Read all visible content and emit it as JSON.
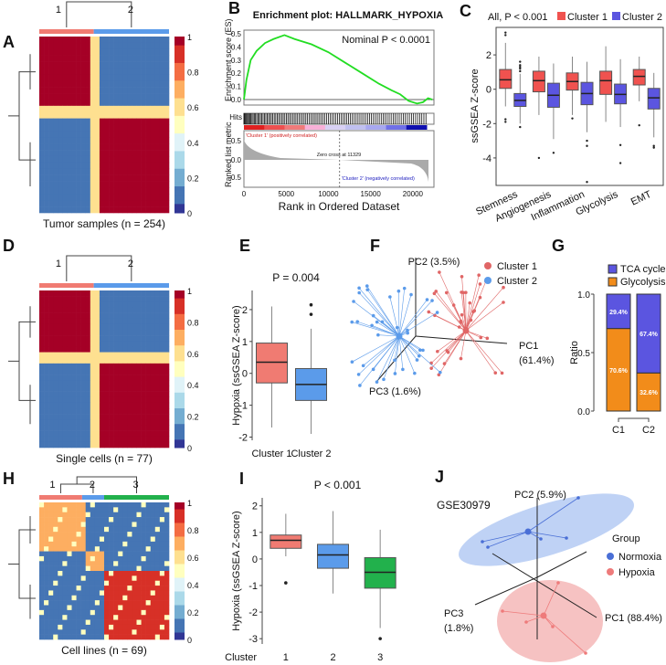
{
  "panel_labels": [
    "A",
    "B",
    "C",
    "D",
    "E",
    "F",
    "G",
    "H",
    "I",
    "J"
  ],
  "chart_data": [
    {
      "id": "A",
      "type": "heatmap",
      "caption": "Tumor samples (n = 254)",
      "dendro_labels": [
        "1",
        "2"
      ],
      "colorbar_ticks": [
        "1",
        "0.8",
        "0.6",
        "0.4",
        "0.2",
        "0"
      ],
      "groups": 2
    },
    {
      "id": "B",
      "type": "line",
      "title": "Enrichment plot: HALLMARK_HYPOXIA",
      "annotation": "Nominal P < 0.0001",
      "ylabel": "Enrichment score (ES)",
      "ylabel2": "Ranked list metric",
      "hits_label": "Hits",
      "xlabel": "Rank in Ordered Dataset",
      "yticks": [
        "0.5",
        "0.4",
        "0.3",
        "0.2",
        "0.1",
        "0.0"
      ],
      "yticks2": [
        "0.5",
        "0.0",
        "-0.5"
      ],
      "xticks": [
        "0",
        "5000",
        "10000",
        "15000",
        "20000"
      ],
      "xlim": [
        0,
        22500
      ],
      "ylim": [
        -0.05,
        0.52
      ],
      "x": [
        0,
        300,
        800,
        1500,
        2500,
        3500,
        4800,
        6000,
        8000,
        10000,
        12000,
        14000,
        16000,
        17500,
        18500,
        19500,
        20500,
        21200,
        21800,
        22300
      ],
      "y": [
        0,
        0.15,
        0.3,
        0.37,
        0.43,
        0.46,
        0.49,
        0.46,
        0.42,
        0.36,
        0.28,
        0.2,
        0.12,
        0.07,
        0.04,
        -0.01,
        -0.03,
        -0.02,
        0.01,
        0
      ],
      "zero_cross": "Zero cross at 11329",
      "zero_cross_x": 11329,
      "pos_label": "'Cluster 1' (positively correlated)",
      "neg_label": "'Cluster 2' (negatively correlated)"
    },
    {
      "id": "C",
      "type": "box",
      "header": "All, P < 0.001",
      "ylabel": "ssGSEA Z-score",
      "yticks": [
        "2",
        "0",
        "-2",
        "-4"
      ],
      "ylim": [
        -5.6,
        3.6
      ],
      "legend": [
        {
          "name": "Cluster 1",
          "color": "#f0524f"
        },
        {
          "name": "Cluster 2",
          "color": "#5b55e0"
        }
      ],
      "categories": [
        "Stemness",
        "Angiogenesis",
        "Inflammation",
        "Glycolysis",
        "EMT"
      ],
      "series": [
        {
          "name": "Cluster 1",
          "boxes": [
            [
              -1,
              0.05,
              0.55,
              1.15,
              2.7
            ],
            [
              -1.5,
              -0.15,
              0.5,
              1.05,
              1.9
            ],
            [
              -1.5,
              -0.05,
              0.45,
              0.95,
              1.9
            ],
            [
              -1.9,
              -0.3,
              0.5,
              1.05,
              2.5
            ],
            [
              -0.7,
              0.25,
              0.75,
              1.15,
              1.9
            ]
          ],
          "outliers": [
            [
              3.3,
              3.15,
              -1.75,
              -1.9
            ],
            [
              -4
            ],
            [
              -1.7
            ],
            [],
            [
              -2.1
            ]
          ]
        },
        {
          "name": "Cluster 2",
          "boxes": [
            [
              -2,
              -1,
              -0.65,
              -0.25,
              0.9
            ],
            [
              -2.9,
              -1.05,
              -0.35,
              0.35,
              1.5
            ],
            [
              -2.5,
              -0.9,
              -0.25,
              0.4,
              1.6
            ],
            [
              -2.2,
              -0.85,
              -0.3,
              0.3,
              1.75
            ],
            [
              -2.8,
              -1.15,
              -0.5,
              0.05,
              0.95
            ]
          ],
          "outliers": [
            [
              1.6,
              1.4,
              1.3,
              1.2,
              1.05,
              -2.2
            ],
            [
              -3.7
            ],
            [
              -3,
              -3.3,
              -5.4
            ],
            [
              -3.25,
              -4.3
            ],
            [
              -3.3,
              -3.4
            ]
          ]
        }
      ]
    },
    {
      "id": "D",
      "type": "heatmap",
      "caption": "Single cells (n = 77)",
      "dendro_labels": [
        "1",
        "2"
      ],
      "colorbar_ticks": [
        "1",
        "0.8",
        "0.6",
        "0.4",
        "0.2",
        "0"
      ],
      "groups": 2
    },
    {
      "id": "E",
      "type": "box",
      "header": "P = 0.004",
      "ylabel": "Hypoxia (ssGSEA Z-score)",
      "yticks": [
        "2",
        "1",
        "0",
        "-1",
        "-2"
      ],
      "ylim": [
        -2.1,
        2.6
      ],
      "categories": [
        "Cluster 1",
        "Cluster 2"
      ],
      "colors": [
        "#f07b72",
        "#5b9bea"
      ],
      "boxes": [
        [
          -1.7,
          -0.3,
          0.35,
          0.95,
          2.1
        ],
        [
          -1.9,
          -0.85,
          -0.35,
          0.15,
          1.4
        ]
      ],
      "outliers": [
        [],
        [
          2.15,
          1.85
        ]
      ]
    },
    {
      "id": "F",
      "type": "scatter3d",
      "axes": [
        "PC1",
        "PC2",
        "PC3"
      ],
      "axis_pct": [
        "(61.4%)",
        "(3.5%)",
        "(1.6%)"
      ],
      "legend": [
        {
          "name": "Cluster 1",
          "color": "#e06666"
        },
        {
          "name": "Cluster 2",
          "color": "#5b9bea"
        }
      ]
    },
    {
      "id": "G",
      "type": "bar",
      "stacked": true,
      "ylabel": "Ratio",
      "yticks": [
        "1.0",
        "0.5",
        "0.0"
      ],
      "categories": [
        "C1",
        "C2"
      ],
      "series": [
        {
          "name": "TCA cycle",
          "color": "#5b55e0",
          "values": [
            0.294,
            0.674
          ],
          "labels": [
            "29.4%",
            "67.4%"
          ]
        },
        {
          "name": "Glycolysis",
          "color": "#f28c1a",
          "values": [
            0.706,
            0.326
          ],
          "labels": [
            "70.6%",
            "32.6%"
          ]
        }
      ]
    },
    {
      "id": "H",
      "type": "heatmap",
      "caption": "Cell lines (n = 69)",
      "dendro_labels": [
        "1",
        "2",
        "3"
      ],
      "colorbar_ticks": [
        "1",
        "0.8",
        "0.6",
        "0.4",
        "0.2",
        "0"
      ],
      "groups": 3
    },
    {
      "id": "I",
      "type": "box",
      "header": "P < 0.001",
      "ylabel": "Hypoxia (ssGSEA Z-score)",
      "yticks": [
        "2",
        "1",
        "0",
        "-1",
        "-2",
        "-3"
      ],
      "ylim": [
        -3.2,
        2.3
      ],
      "xlabel": "Cluster",
      "categories": [
        "1",
        "2",
        "3"
      ],
      "colors": [
        "#f07b72",
        "#5b9bea",
        "#22b14c"
      ],
      "boxes": [
        [
          0.1,
          0.4,
          0.7,
          0.9,
          1.7
        ],
        [
          -1.3,
          -0.35,
          0.15,
          0.55,
          1.8
        ],
        [
          -2.6,
          -1.1,
          -0.5,
          0.05,
          1.1
        ]
      ],
      "outliers": [
        [
          -0.9
        ],
        [],
        [
          -3
        ]
      ]
    },
    {
      "id": "J",
      "type": "scatter3d",
      "title": "GSE30979",
      "axes": [
        "PC1",
        "PC2",
        "PC3"
      ],
      "axis_pct": [
        "(88.4%)",
        "(5.9%)",
        "(1.8%)"
      ],
      "legend_title": "Group",
      "legend": [
        {
          "name": "Normoxia",
          "color": "#4a6fd6"
        },
        {
          "name": "Hypoxia",
          "color": "#ee7b7b"
        }
      ]
    }
  ]
}
